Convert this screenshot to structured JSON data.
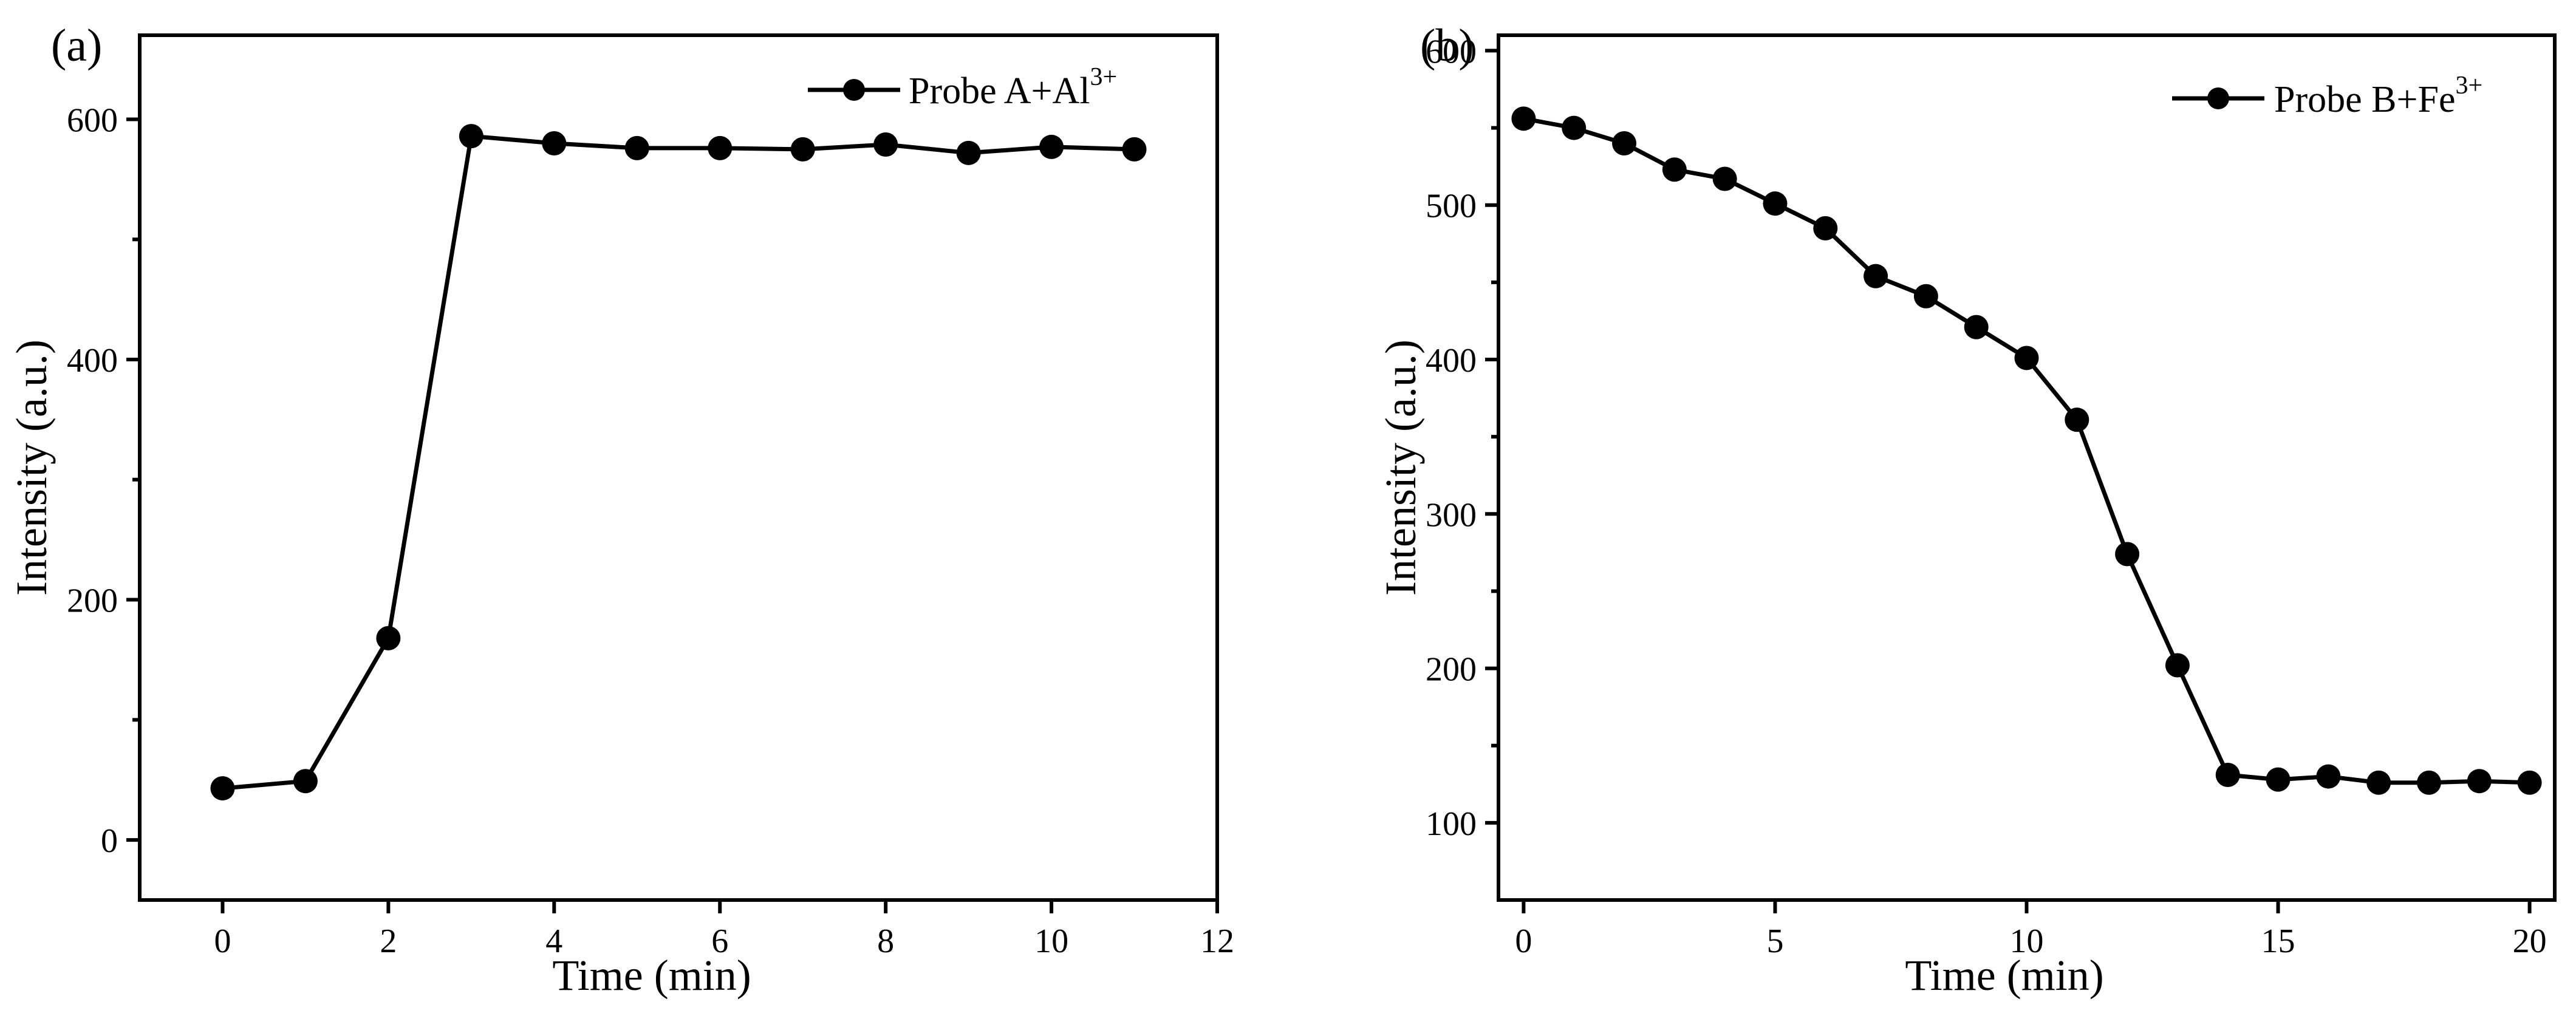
{
  "chart_data": [
    {
      "panel_label": "(a)",
      "type": "line",
      "xlabel": "Time (min)",
      "ylabel": "Intensity (a.u.)",
      "xlim": [
        -1,
        12
      ],
      "ylim": [
        -50,
        670
      ],
      "xticks": [
        0,
        2,
        4,
        6,
        8,
        10,
        12
      ],
      "yticks": [
        0,
        200,
        400,
        600
      ],
      "y_minor_ticks": [
        100,
        300,
        500
      ],
      "legend": {
        "base": "Probe A+Al",
        "sup": "3+",
        "position": "top-right"
      },
      "series": [
        {
          "name": "Probe A+Al3+",
          "x": [
            0,
            1,
            2,
            3,
            4,
            5,
            6,
            7,
            8,
            9,
            10,
            11
          ],
          "y": [
            43,
            49,
            168,
            586,
            580,
            576,
            576,
            575,
            579,
            572,
            577,
            575
          ]
        }
      ]
    },
    {
      "panel_label": "(b)",
      "type": "line",
      "xlabel": "Time (min)",
      "ylabel": "Intensity (a.u.)",
      "xlim": [
        -0.5,
        20.5
      ],
      "ylim": [
        50,
        610
      ],
      "xticks": [
        0,
        5,
        10,
        15,
        20
      ],
      "yticks": [
        100,
        200,
        300,
        400,
        500,
        600
      ],
      "y_minor_ticks": [
        150,
        250,
        350,
        450,
        550
      ],
      "legend": {
        "base": "Probe B+Fe",
        "sup": "3+",
        "position": "top-right"
      },
      "series": [
        {
          "name": "Probe B+Fe3+",
          "x": [
            0,
            1,
            2,
            3,
            4,
            5,
            6,
            7,
            8,
            9,
            10,
            11,
            12,
            13,
            14,
            15,
            16,
            17,
            18,
            19,
            20
          ],
          "y": [
            556,
            550,
            540,
            523,
            517,
            501,
            485,
            454,
            441,
            421,
            401,
            361,
            274,
            202,
            131,
            128,
            130,
            126,
            126,
            127,
            126
          ]
        }
      ]
    }
  ]
}
